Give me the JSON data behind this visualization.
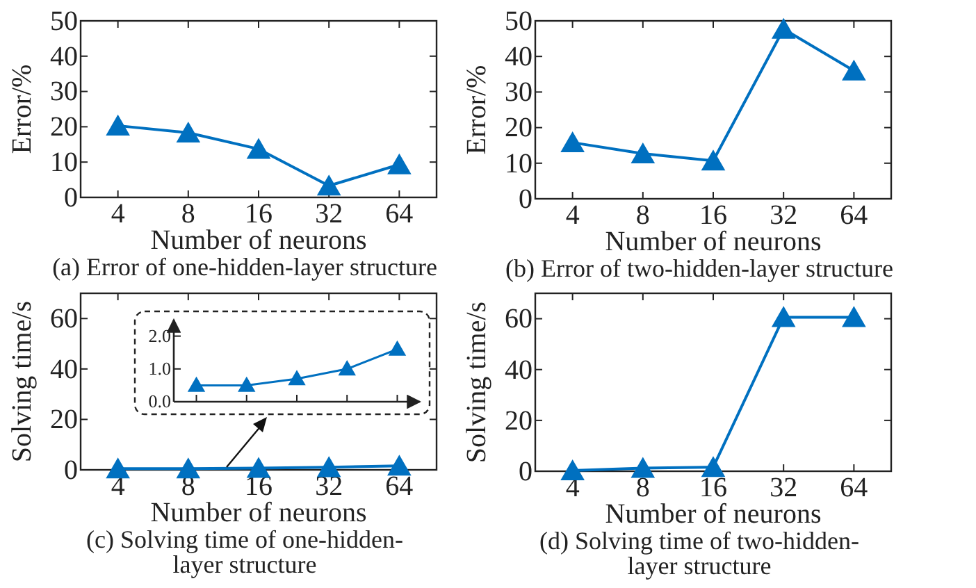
{
  "chart_data": [
    {
      "type": "line",
      "title": "(a) Error of one-hidden-layer structure",
      "xlabel": "Number of neurons",
      "ylabel": "Error/%",
      "categories": [
        "4",
        "8",
        "16",
        "32",
        "64"
      ],
      "values": [
        20.3,
        18.3,
        13.7,
        3.3,
        9.3
      ],
      "color": "#0070c0",
      "marker": "triangle",
      "ylim": [
        0,
        50
      ],
      "yticks": [
        0,
        10,
        20,
        30,
        40,
        50
      ]
    },
    {
      "type": "line",
      "title": "(b) Error of two-hidden-layer structure",
      "xlabel": "Number of neurons",
      "ylabel": "Error/%",
      "categories": [
        "4",
        "8",
        "16",
        "32",
        "64"
      ],
      "values": [
        15.8,
        12.7,
        10.7,
        47.7,
        36.0
      ],
      "color": "#0070c0",
      "marker": "triangle",
      "ylim": [
        0,
        50
      ],
      "yticks": [
        0,
        10,
        20,
        30,
        40,
        50
      ]
    },
    {
      "type": "line",
      "title": "(c) Solving time of one-hidden-layer structure",
      "xlabel": "Number of neurons",
      "ylabel": "Solving time/s",
      "categories": [
        "4",
        "8",
        "16",
        "32",
        "64"
      ],
      "values": [
        0.5,
        0.5,
        0.7,
        1.0,
        1.6
      ],
      "color": "#0070c0",
      "marker": "triangle",
      "ylim": [
        0,
        70
      ],
      "yticks": [
        0,
        20,
        40,
        60
      ]
    },
    {
      "type": "line",
      "categories": [
        null,
        null,
        null,
        null,
        null
      ],
      "values": [
        0.5,
        0.5,
        0.7,
        1.0,
        1.6
      ],
      "color": "#0070c0",
      "marker": "triangle",
      "ylim": [
        0,
        2.5
      ],
      "yticks": [
        {
          "value": 0,
          "label": "0.0"
        },
        {
          "value": 1,
          "label": "1.0"
        },
        {
          "value": 2,
          "label": "2.0"
        }
      ],
      "tick_labels": "y"
    },
    {
      "type": "line",
      "title": "(d) Solving time of two-hidden-layer structure",
      "xlabel": "Number of neurons",
      "ylabel": "Solving time/s",
      "categories": [
        "4",
        "8",
        "16",
        "32",
        "64"
      ],
      "values": [
        0.3,
        1.2,
        1.6,
        60.6,
        60.6
      ],
      "color": "#0070c0",
      "marker": "triangle",
      "ylim": [
        0,
        70
      ],
      "yticks": [
        0,
        20,
        40,
        60
      ]
    }
  ]
}
